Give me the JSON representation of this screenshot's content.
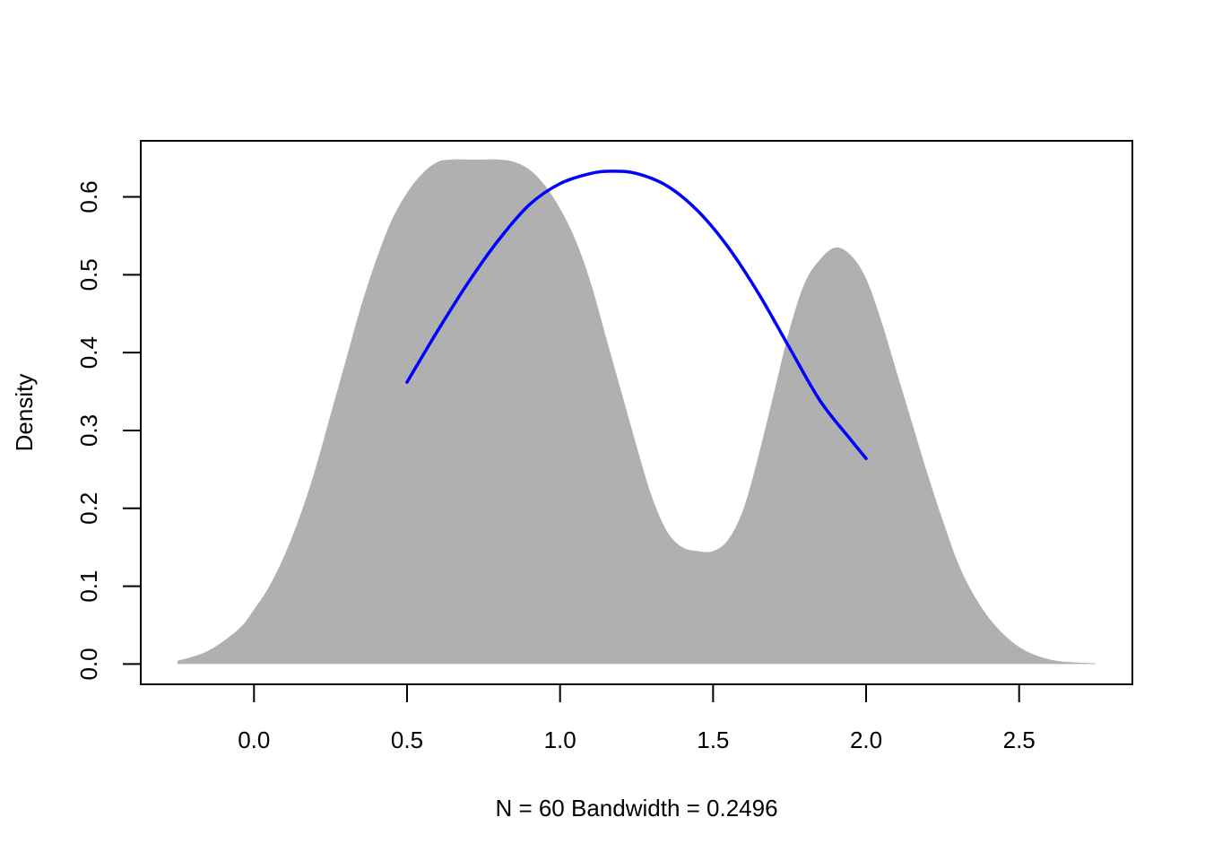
{
  "chart_data": {
    "type": "area",
    "title": "",
    "xlabel": "N = 60   Bandwidth = 0.2496",
    "ylabel": "Density",
    "xlim": [
      -0.37,
      2.87
    ],
    "ylim": [
      -0.026,
      0.672
    ],
    "xticks": [
      0.0,
      0.5,
      1.0,
      1.5,
      2.0,
      2.5
    ],
    "xtick_labels": [
      "0.0",
      "0.5",
      "1.0",
      "1.5",
      "2.0",
      "2.5"
    ],
    "yticks": [
      0.0,
      0.1,
      0.2,
      0.3,
      0.4,
      0.5,
      0.6
    ],
    "ytick_labels": [
      "0.0",
      "0.1",
      "0.2",
      "0.3",
      "0.4",
      "0.5",
      "0.6"
    ],
    "grid": false,
    "series": [
      {
        "kind": "filled-density",
        "color": "#b0b0b0",
        "x": [
          -0.25,
          -0.15,
          -0.05,
          0.0,
          0.05,
          0.1,
          0.15,
          0.2,
          0.25,
          0.3,
          0.35,
          0.4,
          0.45,
          0.5,
          0.55,
          0.6,
          0.65,
          0.7,
          0.75,
          0.8,
          0.85,
          0.9,
          0.95,
          1.0,
          1.05,
          1.1,
          1.15,
          1.2,
          1.25,
          1.3,
          1.35,
          1.4,
          1.45,
          1.5,
          1.55,
          1.6,
          1.65,
          1.7,
          1.75,
          1.8,
          1.85,
          1.9,
          1.95,
          2.0,
          2.05,
          2.1,
          2.15,
          2.2,
          2.25,
          2.3,
          2.35,
          2.4,
          2.45,
          2.5,
          2.55,
          2.6,
          2.65,
          2.75
        ],
        "y": [
          0.004,
          0.017,
          0.045,
          0.07,
          0.1,
          0.14,
          0.19,
          0.25,
          0.32,
          0.39,
          0.46,
          0.52,
          0.57,
          0.605,
          0.63,
          0.645,
          0.648,
          0.648,
          0.648,
          0.648,
          0.645,
          0.635,
          0.615,
          0.585,
          0.545,
          0.49,
          0.42,
          0.35,
          0.28,
          0.215,
          0.17,
          0.15,
          0.145,
          0.145,
          0.16,
          0.2,
          0.27,
          0.35,
          0.43,
          0.49,
          0.52,
          0.535,
          0.525,
          0.495,
          0.44,
          0.375,
          0.31,
          0.245,
          0.185,
          0.13,
          0.09,
          0.06,
          0.038,
          0.022,
          0.012,
          0.006,
          0.003,
          0.001
        ]
      },
      {
        "kind": "line",
        "color": "#0000ff",
        "x": [
          0.5,
          0.6,
          0.7,
          0.8,
          0.9,
          1.0,
          1.1,
          1.17,
          1.25,
          1.35,
          1.45,
          1.55,
          1.65,
          1.75,
          1.85,
          1.95,
          2.0
        ],
        "y": [
          0.362,
          0.428,
          0.49,
          0.545,
          0.59,
          0.617,
          0.63,
          0.633,
          0.63,
          0.614,
          0.582,
          0.535,
          0.475,
          0.406,
          0.338,
          0.288,
          0.264
        ]
      }
    ]
  }
}
